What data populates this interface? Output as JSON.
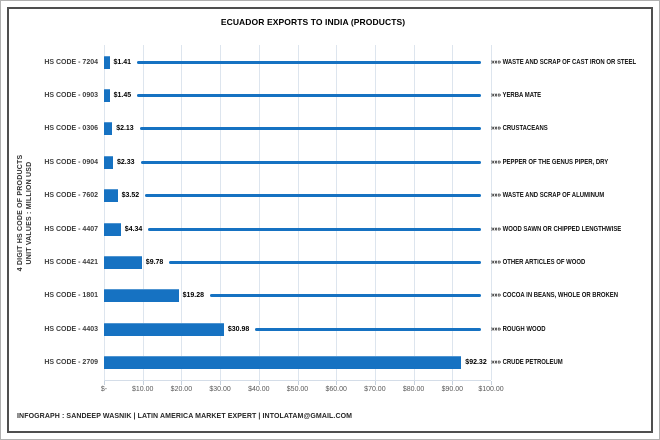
{
  "title": "ECUADOR EXPORTS TO INDIA (PRODUCTS)",
  "footer_credit": "INFOGRAPH : SANDEEP WASNIK | LATIN AMERICA MARKET EXPERT | INTOLATAM@GMAIL.COM",
  "y_axis": {
    "label_line1": "4 DIGIT HS CODE OF PRODUCTS",
    "label_line2": "UNIT VALUES : MILLION USD"
  },
  "leader_marker": "»»»",
  "colors": {
    "bar": "#1672c2",
    "leader_line": "#1672c2",
    "gridline": "#dde5ee",
    "frame": "#4f4f4f"
  },
  "chart_data": {
    "type": "bar",
    "orientation": "horizontal",
    "title": "ECUADOR EXPORTS TO INDIA (PRODUCTS)",
    "ylabel": "4 DIGIT HS CODE OF PRODUCTS / UNIT VALUES : MILLION USD",
    "xlim": [
      0,
      100
    ],
    "x_ticks": [
      "$-",
      "$10.00",
      "$20.00",
      "$30.00",
      "$40.00",
      "$50.00",
      "$60.00",
      "$70.00",
      "$80.00",
      "$90.00",
      "$100.00"
    ],
    "grid": true,
    "legend": false,
    "rows": [
      {
        "category": "HS CODE - 7204",
        "value": 1.41,
        "value_label": "$1.41",
        "product": "WASTE AND SCRAP OF CAST IRON OR STEEL"
      },
      {
        "category": "HS CODE - 0903",
        "value": 1.45,
        "value_label": "$1.45",
        "product": "YERBA MATE"
      },
      {
        "category": "HS CODE - 0306",
        "value": 2.13,
        "value_label": "$2.13",
        "product": "CRUSTACEANS"
      },
      {
        "category": "HS CODE - 0904",
        "value": 2.33,
        "value_label": "$2.33",
        "product": "PEPPER OF THE GENUS PIPER, DRY"
      },
      {
        "category": "HS CODE - 7602",
        "value": 3.52,
        "value_label": "$3.52",
        "product": "WASTE AND SCRAP OF ALUMINUM"
      },
      {
        "category": "HS CODE - 4407",
        "value": 4.34,
        "value_label": "$4.34",
        "product": "WOOD SAWN OR CHIPPED LENGTHWISE"
      },
      {
        "category": "HS CODE - 4421",
        "value": 9.78,
        "value_label": "$9.78",
        "product": "OTHER ARTICLES OF WOOD"
      },
      {
        "category": "HS CODE - 1801",
        "value": 19.28,
        "value_label": "$19.28",
        "product": "COCOA IN BEANS, WHOLE OR BROKEN"
      },
      {
        "category": "HS CODE - 4403",
        "value": 30.98,
        "value_label": "$30.98",
        "product": "ROUGH WOOD"
      },
      {
        "category": "HS CODE - 2709",
        "value": 92.32,
        "value_label": "$92.32",
        "product": "CRUDE PETROLEUM"
      }
    ]
  }
}
